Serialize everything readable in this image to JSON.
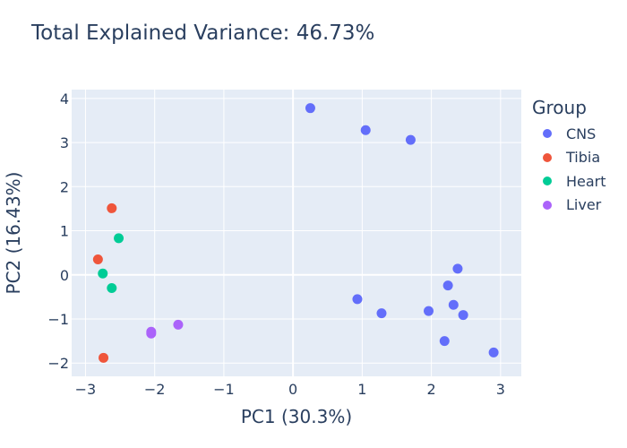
{
  "chart_data": {
    "type": "scatter",
    "title": "Total Explained Variance: 46.73%",
    "xlabel": "PC1 (30.3%)",
    "ylabel": "PC2 (16.43%)",
    "xlim": [
      -3.2,
      3.3
    ],
    "ylim": [
      -2.3,
      4.2
    ],
    "xticks": [
      -3,
      -2,
      -1,
      0,
      1,
      2,
      3
    ],
    "yticks": [
      -2,
      -1,
      0,
      1,
      2,
      3,
      4
    ],
    "grid": true,
    "legend_title": "Group",
    "legend_position": "right",
    "series": [
      {
        "name": "CNS",
        "color": "#636efa",
        "points": [
          [
            0.25,
            3.78
          ],
          [
            1.05,
            3.28
          ],
          [
            1.7,
            3.06
          ],
          [
            2.38,
            0.14
          ],
          [
            2.24,
            -0.24
          ],
          [
            2.32,
            -0.68
          ],
          [
            2.46,
            -0.91
          ],
          [
            1.96,
            -0.82
          ],
          [
            0.93,
            -0.55
          ],
          [
            1.28,
            -0.87
          ],
          [
            2.19,
            -1.5
          ],
          [
            2.9,
            -1.76
          ]
        ]
      },
      {
        "name": "Tibia",
        "color": "#ef553b",
        "points": [
          [
            -2.62,
            1.51
          ],
          [
            -2.82,
            0.35
          ],
          [
            -2.74,
            -1.88
          ]
        ]
      },
      {
        "name": "Heart",
        "color": "#00cc96",
        "points": [
          [
            -2.52,
            0.83
          ],
          [
            -2.75,
            0.03
          ],
          [
            -2.62,
            -0.3
          ]
        ]
      },
      {
        "name": "Liver",
        "color": "#ab63fa",
        "points": [
          [
            -1.66,
            -1.13
          ],
          [
            -2.05,
            -1.29
          ],
          [
            -2.05,
            -1.33
          ]
        ]
      }
    ]
  }
}
